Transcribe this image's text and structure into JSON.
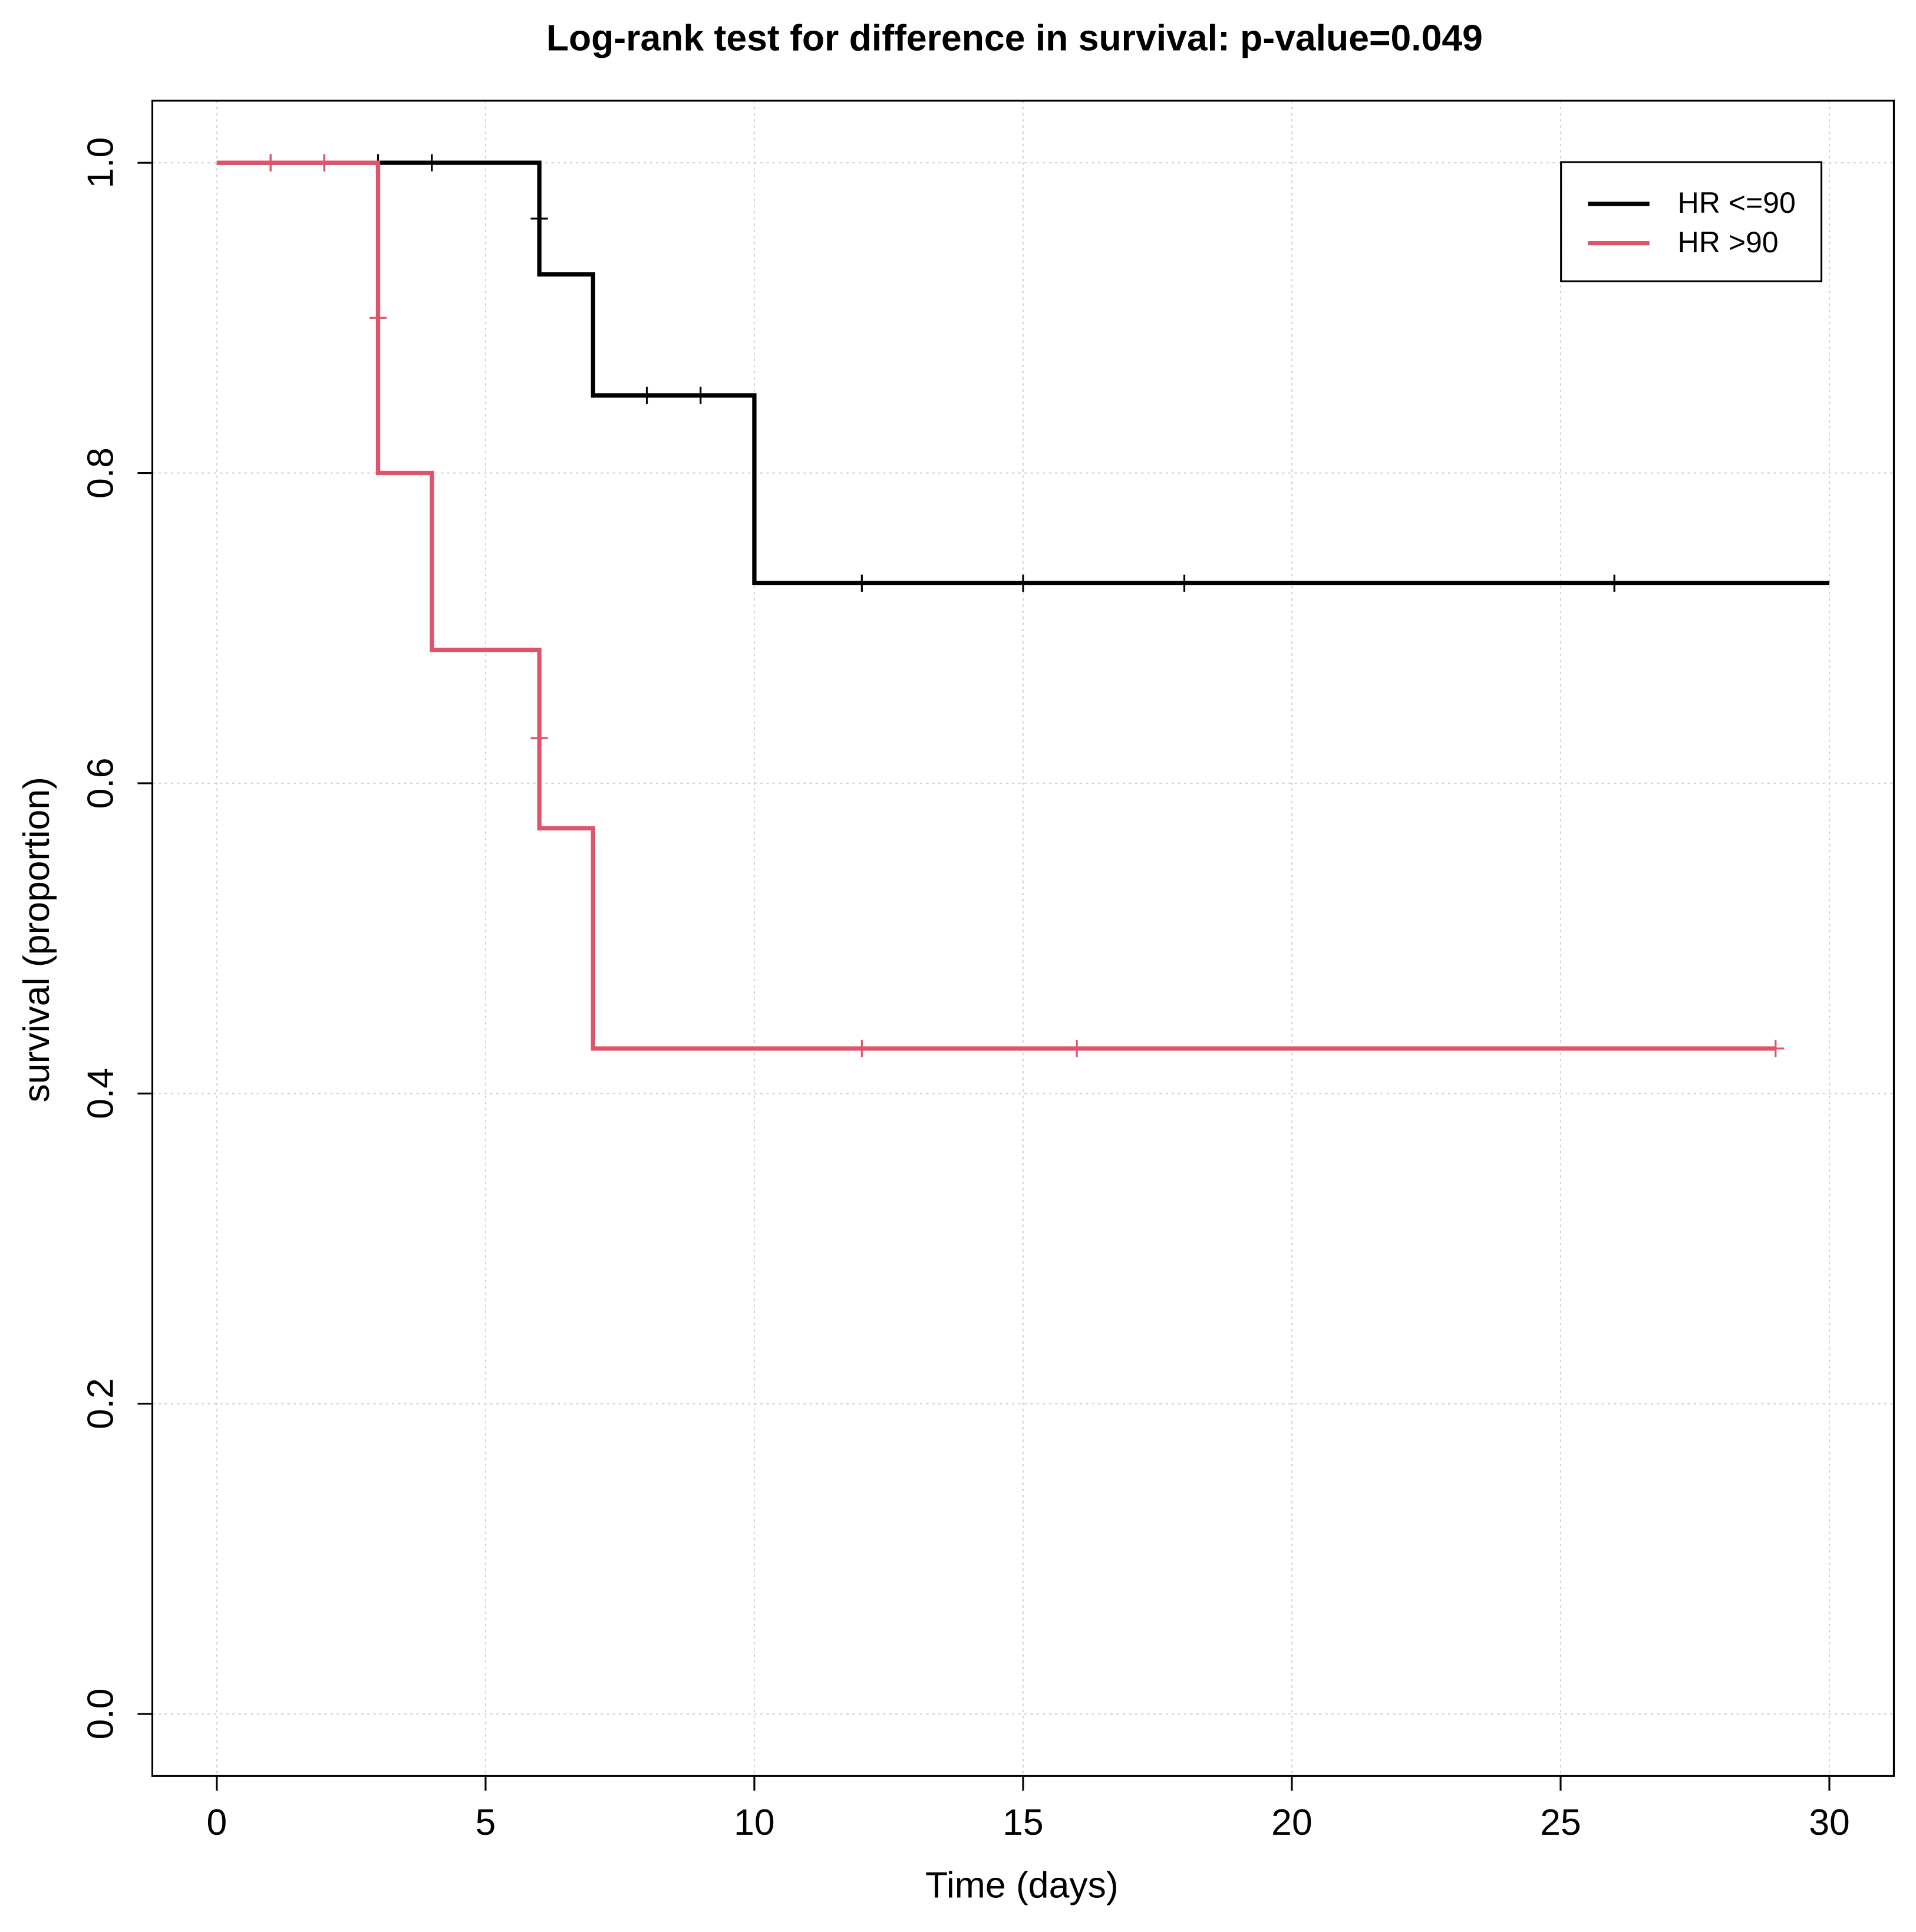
{
  "chart_data": {
    "type": "step",
    "title": "Log-rank test for difference in survival: p-value=0.049",
    "x_label": "Time (days)",
    "y_label": "survival (proportion)",
    "xlim": [
      -1.2,
      31.2
    ],
    "ylim": [
      -0.04,
      1.04
    ],
    "xticks": [
      0,
      5,
      10,
      15,
      20,
      25,
      30
    ],
    "yticks": [
      {
        "value": 0,
        "label": "0.0"
      },
      0.2,
      0.4,
      0.6,
      0.8,
      {
        "value": 1,
        "label": "1.0"
      }
    ],
    "grid": true,
    "legend": "top-right",
    "series": [
      {
        "name": "HR <=90",
        "color": "#000000",
        "x": [
          0,
          6,
          7,
          10,
          30
        ],
        "values": [
          1,
          0.928,
          0.85,
          0.729,
          0.729
        ],
        "censor_x": [
          1,
          2,
          3,
          4,
          6,
          8,
          9,
          12,
          15,
          18,
          26
        ],
        "censor_y": [
          1,
          1,
          1,
          1,
          0.964,
          0.85,
          0.85,
          0.729,
          0.729,
          0.729,
          0.729
        ]
      },
      {
        "name": "HR >90",
        "color": "#DF536B",
        "x": [
          0,
          3,
          4,
          6,
          7,
          29
        ],
        "values": [
          1,
          0.8,
          0.686,
          0.571,
          0.429,
          0.429
        ],
        "censor_x": [
          1,
          2,
          3,
          6,
          12,
          16,
          29
        ],
        "censor_y": [
          1,
          1,
          0.9,
          0.629,
          0.429,
          0.429,
          0.429
        ]
      }
    ]
  }
}
